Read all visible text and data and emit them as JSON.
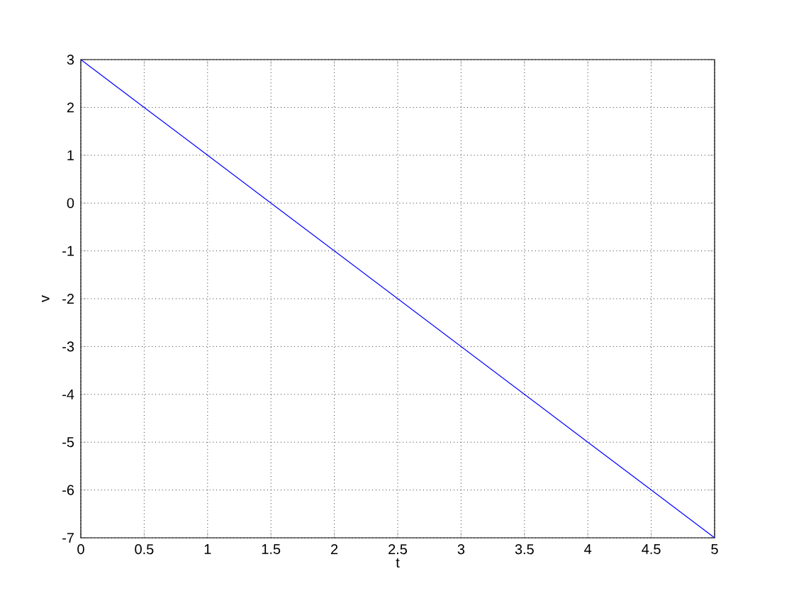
{
  "chart_data": {
    "type": "line",
    "xlabel": "t",
    "ylabel": "v",
    "x": [
      0,
      0.5,
      1,
      1.5,
      2,
      2.5,
      3,
      3.5,
      4,
      4.5,
      5
    ],
    "series": [
      {
        "color": "#0000ff",
        "values": [
          3,
          2,
          1,
          0,
          -1,
          -2,
          -3,
          -4,
          -5,
          -6,
          -7
        ]
      }
    ],
    "xlim": [
      0,
      5
    ],
    "ylim": [
      -7,
      3
    ],
    "xticks": [
      0,
      0.5,
      1,
      1.5,
      2,
      2.5,
      3,
      3.5,
      4,
      4.5,
      5
    ],
    "yticks": [
      -7,
      -6,
      -5,
      -4,
      -3,
      -2,
      -1,
      0,
      1,
      2,
      3
    ],
    "grid": true,
    "marker": "none",
    "line_style": "solid"
  }
}
